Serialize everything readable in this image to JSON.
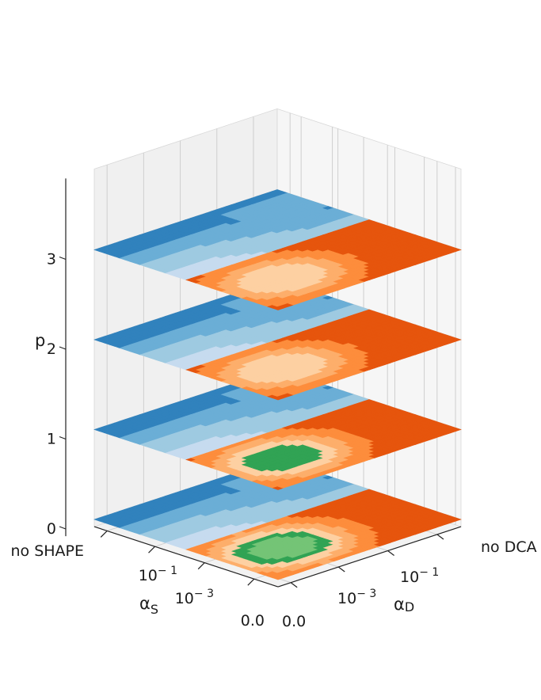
{
  "chart_data": {
    "type": "3d-contour",
    "title": "",
    "z_axis": {
      "label": "p",
      "ticks": [
        "0",
        "1",
        "2",
        "3"
      ]
    },
    "x_axis": {
      "label": "α_S",
      "label_parts": {
        "main": "α",
        "sub": "S"
      },
      "ticks": [
        {
          "label": "no SHAPE"
        },
        {
          "label": "10^-1",
          "base": "10",
          "exp": "− 1"
        },
        {
          "label": "10^-3",
          "base": "10",
          "exp": "− 3"
        },
        {
          "label": "0.0"
        }
      ]
    },
    "y_axis": {
      "label": "α_D",
      "label_parts": {
        "main": "α",
        "sub": "D"
      },
      "ticks": [
        {
          "label": "0.0"
        },
        {
          "label": "10^-3",
          "base": "10",
          "exp": "− 3"
        },
        {
          "label": "10^-1",
          "base": "10",
          "exp": "− 1"
        },
        {
          "label": "no DCA"
        }
      ]
    },
    "layers": [
      {
        "p": 0,
        "peak": 5
      },
      {
        "p": 1,
        "peak": 4
      },
      {
        "p": 2,
        "peak": 3
      },
      {
        "p": 3,
        "peak": 3
      }
    ],
    "colormap": [
      "#3182bd",
      "#6baed6",
      "#9ecae1",
      "#c6dbef",
      "#e6550d",
      "#fd8d3c",
      "#fdae6b",
      "#fdd0a2",
      "#31a354",
      "#74c476",
      "#a1d99b",
      "#c7e9c0"
    ],
    "grid": true
  }
}
